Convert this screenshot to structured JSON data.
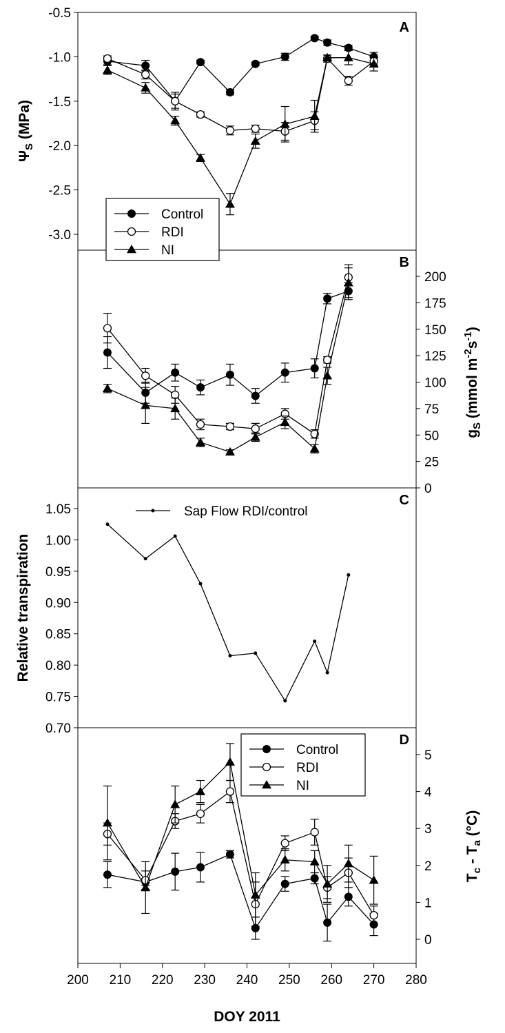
{
  "x_axis": {
    "label": "DOY 2011",
    "ticks": [
      200,
      210,
      220,
      230,
      240,
      250,
      260,
      270,
      280
    ],
    "range": [
      200,
      280
    ]
  },
  "chart_data": [
    {
      "type": "line",
      "panel_label": "A",
      "ylabel_main": "Ψ",
      "ylabel_sub": "S",
      "ylabel_unit": " (MPa)",
      "y_axis_side": "left",
      "ylim": [
        -3.0,
        -0.5
      ],
      "yticks": [
        "-0.5",
        "-1.0",
        "-1.5",
        "-2.0",
        "-2.5",
        "-3.0"
      ],
      "ytick_values": [
        -0.5,
        -1.0,
        -1.5,
        -2.0,
        -2.5,
        -3.0
      ],
      "legend": {
        "placement": "bottom-left",
        "entries": [
          "Control",
          "RDI",
          "NI"
        ]
      },
      "series": [
        {
          "name": "Control",
          "marker": "filled-circle",
          "x": [
            207,
            216,
            223,
            229,
            236,
            242,
            249,
            256,
            259,
            264,
            270
          ],
          "y": [
            -1.05,
            -1.1,
            -1.5,
            -1.06,
            -1.4,
            -1.08,
            -1.0,
            -0.79,
            -0.84,
            -0.9,
            -1.0
          ],
          "err": [
            0.04,
            0.06,
            0.08,
            0.02,
            0.03,
            0.02,
            0.04,
            0.02,
            0.03,
            0.03,
            0.05
          ]
        },
        {
          "name": "RDI",
          "marker": "open-circle",
          "x": [
            207,
            216,
            223,
            229,
            236,
            242,
            249,
            256,
            259,
            264,
            270
          ],
          "y": [
            -1.02,
            -1.2,
            -1.5,
            -1.65,
            -1.83,
            -1.81,
            -1.84,
            -1.72,
            -1.02,
            -1.27,
            -1.05
          ],
          "err": [
            0.03,
            0.05,
            0.1,
            0.03,
            0.05,
            0.04,
            0.1,
            0.1,
            0.04,
            0.05,
            0.04
          ]
        },
        {
          "name": "NI",
          "marker": "filled-triangle",
          "x": [
            207,
            216,
            223,
            229,
            236,
            242,
            249,
            256,
            259,
            264,
            270
          ],
          "y": [
            -1.15,
            -1.35,
            -1.72,
            -2.14,
            -2.66,
            -1.95,
            -1.76,
            -1.67,
            -1.01,
            -1.01,
            -1.08
          ],
          "err": [
            0.05,
            0.06,
            0.05,
            0.04,
            0.12,
            0.08,
            0.2,
            0.18,
            0.03,
            0.08,
            0.08
          ]
        }
      ]
    },
    {
      "type": "line",
      "panel_label": "B",
      "ylabel_main": "g",
      "ylabel_sub": "S",
      "ylabel_unit": " (mmol m",
      "ylabel_sup1": "-2",
      "ylabel_mid": "s",
      "ylabel_sup2": "-1",
      "ylabel_end": ")",
      "y_axis_side": "right",
      "ylim": [
        0,
        210
      ],
      "yticks": [
        "0",
        "25",
        "50",
        "75",
        "100",
        "125",
        "150",
        "175",
        "200"
      ],
      "ytick_values": [
        0,
        25,
        50,
        75,
        100,
        125,
        150,
        175,
        200
      ],
      "series": [
        {
          "name": "Control",
          "marker": "filled-circle",
          "x": [
            207,
            216,
            223,
            229,
            236,
            242,
            249,
            256,
            259,
            264
          ],
          "y": [
            128,
            90,
            109,
            95,
            107,
            87,
            109,
            113,
            179,
            186
          ],
          "err": [
            15,
            10,
            8,
            7,
            10,
            7,
            9,
            9,
            5,
            8
          ]
        },
        {
          "name": "RDI",
          "marker": "open-circle",
          "x": [
            207,
            216,
            223,
            229,
            236,
            242,
            249,
            256,
            259,
            264
          ],
          "y": [
            151,
            106,
            88,
            60,
            58,
            56,
            70,
            51,
            121,
            199
          ],
          "err": [
            14,
            7,
            8,
            5,
            3,
            5,
            5,
            4,
            3,
            12
          ]
        },
        {
          "name": "NI",
          "marker": "filled-triangle",
          "x": [
            207,
            216,
            223,
            229,
            236,
            242,
            249,
            256,
            259,
            264
          ],
          "y": [
            94,
            78,
            75,
            43,
            34,
            48,
            62,
            37,
            106,
            194
          ],
          "err": [
            4,
            17,
            10,
            4,
            2,
            4,
            6,
            4,
            8,
            14
          ]
        }
      ]
    },
    {
      "type": "line",
      "panel_label": "C",
      "ylabel_main": "Relative transpiration",
      "y_axis_side": "left",
      "ylim": [
        0.7,
        1.07
      ],
      "yticks": [
        "1.05",
        "1.00",
        "0.95",
        "0.90",
        "0.85",
        "0.80",
        "0.75",
        "0.70"
      ],
      "ytick_values": [
        1.05,
        1.0,
        0.95,
        0.9,
        0.85,
        0.8,
        0.75,
        0.7
      ],
      "legend": {
        "placement": "top-center",
        "entries": [
          "Sap Flow RDI/control"
        ]
      },
      "series": [
        {
          "name": "Sap Flow RDI/control",
          "marker": "small-dot",
          "x": [
            207,
            216,
            223,
            229,
            236,
            242,
            249,
            256,
            259,
            264
          ],
          "y": [
            1.025,
            0.97,
            1.006,
            0.93,
            0.815,
            0.819,
            0.743,
            0.838,
            0.788,
            0.944
          ]
        }
      ]
    },
    {
      "type": "line",
      "panel_label": "D",
      "ylabel_main": "T",
      "ylabel_sub1": "c",
      "ylabel_mid": " - T",
      "ylabel_sub2": "a",
      "ylabel_unit": " (°C)",
      "y_axis_side": "right",
      "ylim": [
        -0.5,
        5.5
      ],
      "yticks": [
        "0",
        "1",
        "2",
        "3",
        "4",
        "5"
      ],
      "ytick_values": [
        0,
        1,
        2,
        3,
        4,
        5
      ],
      "legend": {
        "placement": "top-center",
        "entries": [
          "Control",
          "RDI",
          "NI"
        ]
      },
      "series": [
        {
          "name": "Control",
          "marker": "filled-circle",
          "x": [
            207,
            216,
            223,
            229,
            236,
            242,
            249,
            256,
            259,
            264,
            270
          ],
          "y": [
            1.75,
            1.55,
            1.83,
            1.95,
            2.3,
            0.3,
            1.5,
            1.65,
            0.45,
            1.15,
            0.4
          ],
          "err": [
            0.35,
            0.1,
            0.5,
            0.4,
            0.1,
            0.3,
            0.2,
            0.15,
            0.5,
            0.25,
            0.3
          ]
        },
        {
          "name": "RDI",
          "marker": "open-circle",
          "x": [
            207,
            216,
            223,
            229,
            236,
            242,
            249,
            256,
            259,
            264,
            270
          ],
          "y": [
            2.85,
            1.6,
            3.2,
            3.4,
            4.0,
            0.95,
            2.6,
            2.9,
            1.4,
            1.8,
            0.65
          ],
          "err": [
            0.3,
            0.25,
            0.2,
            0.25,
            0.3,
            0.6,
            0.2,
            0.35,
            0.3,
            0.4,
            0.25
          ]
        },
        {
          "name": "NI",
          "marker": "filled-triangle",
          "x": [
            207,
            216,
            223,
            229,
            236,
            242,
            249,
            256,
            259,
            264,
            270
          ],
          "y": [
            3.15,
            1.4,
            3.65,
            4.0,
            4.8,
            1.2,
            2.15,
            2.1,
            1.5,
            2.05,
            1.6
          ],
          "err": [
            1.0,
            0.7,
            0.5,
            0.3,
            0.5,
            0.6,
            0.3,
            0.3,
            0.5,
            0.5,
            0.65
          ]
        }
      ]
    }
  ]
}
